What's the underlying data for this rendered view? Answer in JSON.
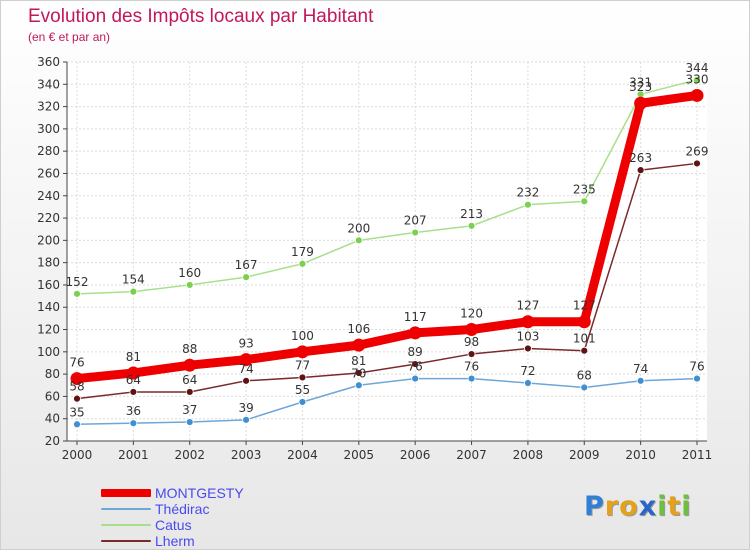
{
  "chart_data": {
    "type": "line",
    "title": "Evolution des Impôts locaux par Habitant",
    "subtitle": "(en € et par an)",
    "xlabel": "",
    "ylabel": "",
    "x": [
      "2000",
      "2001",
      "2002",
      "2003",
      "2004",
      "2005",
      "2006",
      "2007",
      "2008",
      "2009",
      "2010",
      "2011"
    ],
    "ylim": [
      20,
      360
    ],
    "yticks": [
      "20",
      "40",
      "60",
      "80",
      "100",
      "120",
      "140",
      "160",
      "180",
      "200",
      "220",
      "240",
      "260",
      "280",
      "300",
      "320",
      "340",
      "360"
    ],
    "grid": true,
    "legend_position": "bottom-left",
    "series": [
      {
        "name": "MONTGESTY",
        "color": "#ee0000",
        "values": [
          76,
          81,
          88,
          93,
          100,
          106,
          117,
          120,
          127,
          127,
          323,
          330
        ],
        "labels": [
          "76",
          "81",
          "88",
          "93",
          "100",
          "106",
          "117",
          "120",
          "127",
          "127",
          "323",
          "330"
        ]
      },
      {
        "name": "Thédirac",
        "color": "#6ea6d8",
        "point_color": "#3f8fd2",
        "values": [
          35,
          36,
          37,
          39,
          55,
          70,
          76,
          76,
          72,
          68,
          74,
          76
        ],
        "labels": [
          "35",
          "36",
          "37",
          "39",
          "55",
          "70",
          "76",
          "76",
          "72",
          "68",
          "74",
          "76"
        ]
      },
      {
        "name": "Catus",
        "color": "#a6e08a",
        "point_color": "#7bd14f",
        "values": [
          152,
          154,
          160,
          167,
          179,
          200,
          207,
          213,
          232,
          235,
          331,
          344
        ],
        "labels": [
          "152",
          "154",
          "160",
          "167",
          "179",
          "200",
          "207",
          "213",
          "232",
          "235",
          "331",
          "344"
        ]
      },
      {
        "name": "Lherm",
        "color": "#7a2a2a",
        "point_color": "#5e1414",
        "values": [
          58,
          64,
          64,
          74,
          77,
          81,
          89,
          98,
          103,
          101,
          263,
          269
        ],
        "labels": [
          "58",
          "64",
          "64",
          "74",
          "77",
          "81",
          "89",
          "98",
          "103",
          "101",
          "263",
          "269"
        ]
      }
    ]
  },
  "brand": {
    "letters": [
      "P",
      "r",
      "o",
      "x",
      "i",
      "t",
      "i"
    ],
    "colors": [
      "#2f7fd6",
      "#e3a21a",
      "#e3a21a",
      "#2a66c9",
      "#6fbf3f",
      "#e3a21a",
      "#6fbf3f"
    ]
  }
}
